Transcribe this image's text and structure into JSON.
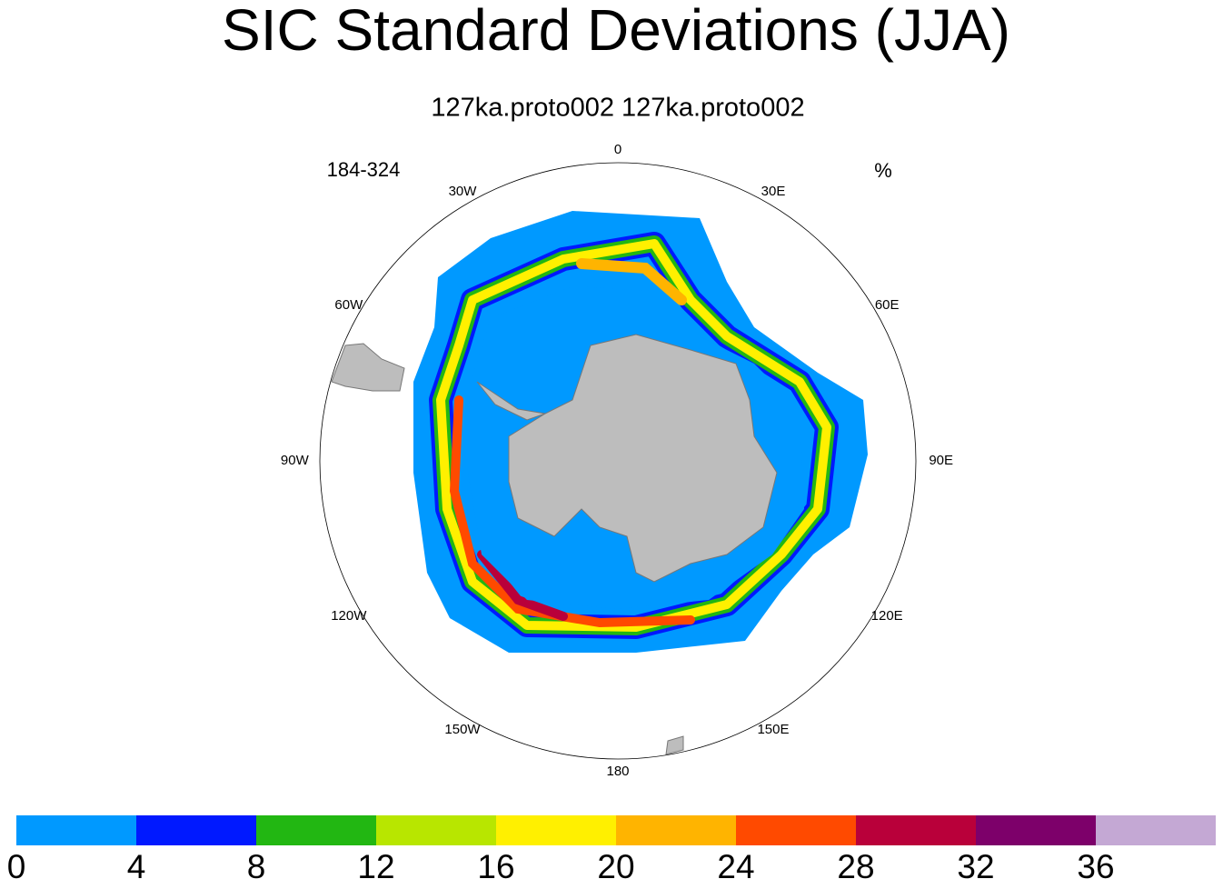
{
  "title": "SIC Standard Deviations (JJA)",
  "subtitle": "127ka.proto002  127ka.proto002",
  "left_label": "184-324",
  "right_label": "%",
  "longitude_labels": [
    "0",
    "30E",
    "60E",
    "90E",
    "120E",
    "150E",
    "180",
    "150W",
    "120W",
    "90W",
    "60W",
    "30W"
  ],
  "colorbar": {
    "colors": [
      "#0099ff",
      "#0019ff",
      "#22b712",
      "#b8e600",
      "#fff000",
      "#ffb400",
      "#ff4a00",
      "#b9003a",
      "#7d006a",
      "#c4a8d4"
    ],
    "ticks": [
      0,
      4,
      8,
      12,
      16,
      20,
      24,
      28,
      32,
      36
    ]
  }
}
